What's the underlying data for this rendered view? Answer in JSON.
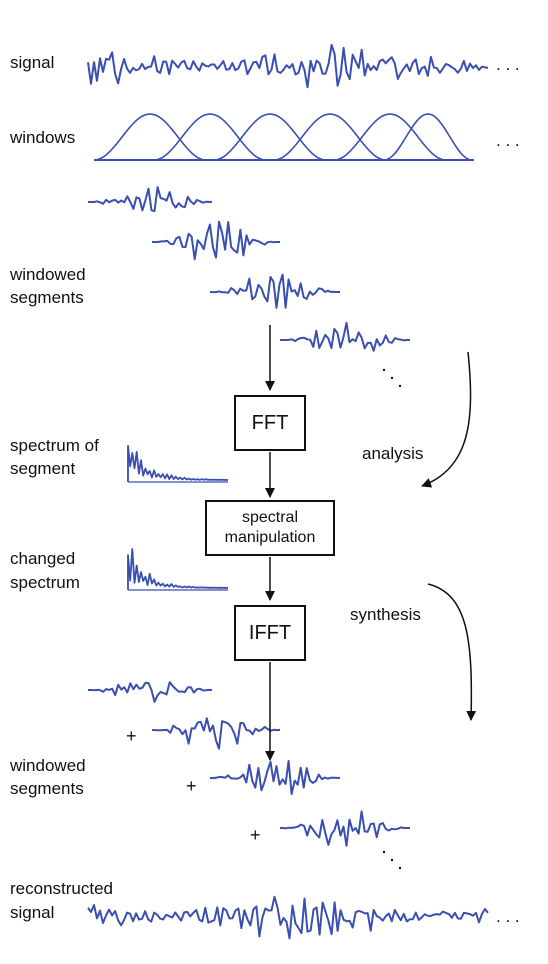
{
  "labels": {
    "signal": "signal",
    "windows": "windows",
    "windowed_segments_top_1": "windowed",
    "windowed_segments_top_2": "segments",
    "spectrum_of_segment_1": "spectrum of",
    "spectrum_of_segment_2": "segment",
    "changed_spectrum_1": "changed",
    "changed_spectrum_2": "spectrum",
    "windowed_segments_bottom_1": "windowed",
    "windowed_segments_bottom_2": "segments",
    "reconstructed_signal_1": "reconstructed",
    "reconstructed_signal_2": "signal",
    "analysis": "analysis",
    "synthesis": "synthesis",
    "ellipsis": ". . .",
    "plus": "+"
  },
  "boxes": {
    "fft": "FFT",
    "spectral_manipulation_1": "spectral",
    "spectral_manipulation_2": "manipulation",
    "ifft": "IFFT"
  },
  "colors": {
    "waveform": "#3a4fb0",
    "line": "#111111"
  }
}
